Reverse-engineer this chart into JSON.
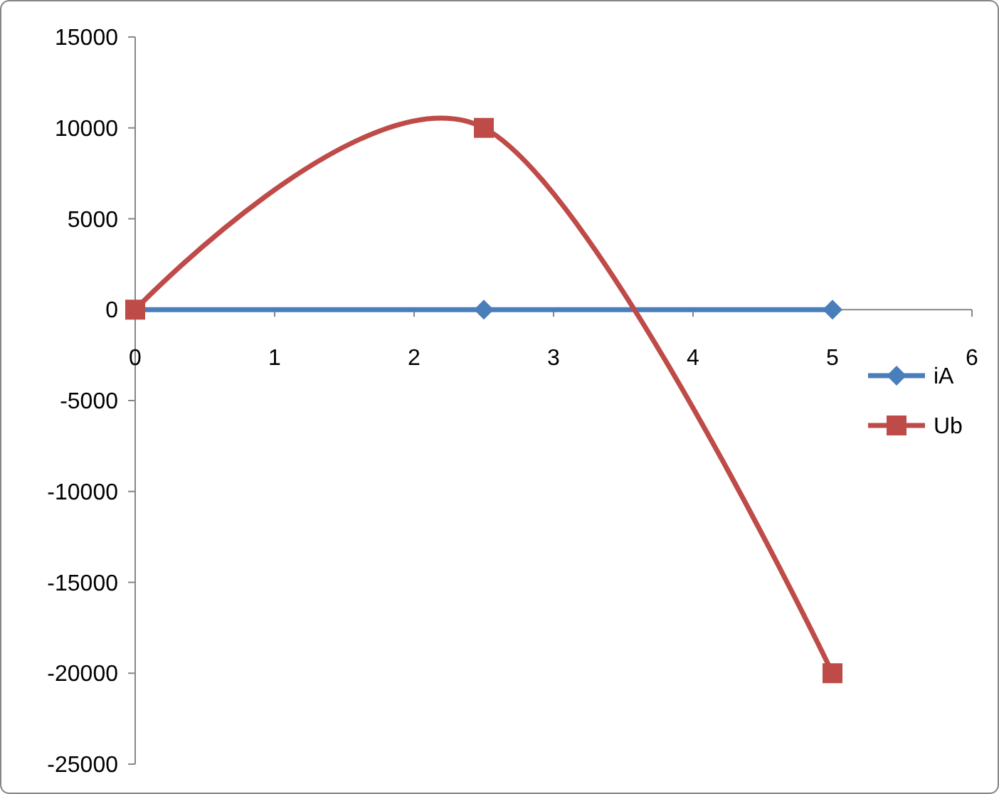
{
  "chart_data": {
    "type": "line",
    "xlim": [
      0,
      6
    ],
    "xticks": [
      0,
      1,
      2,
      3,
      4,
      5,
      6
    ],
    "ylim": [
      -25000,
      15000
    ],
    "yticks": [
      -25000,
      -20000,
      -15000,
      -10000,
      -5000,
      0,
      5000,
      10000,
      15000
    ],
    "grid": false,
    "legend": "right",
    "series": [
      {
        "name": "iA",
        "color": "#4a7ebb",
        "marker": "diamond",
        "x": [
          0,
          2.5,
          5
        ],
        "values": [
          0,
          0,
          0
        ]
      },
      {
        "name": "Ub",
        "color": "#be4b48",
        "marker": "square",
        "x": [
          0,
          2.5,
          5
        ],
        "values": [
          0,
          10000,
          -20000
        ]
      }
    ]
  }
}
